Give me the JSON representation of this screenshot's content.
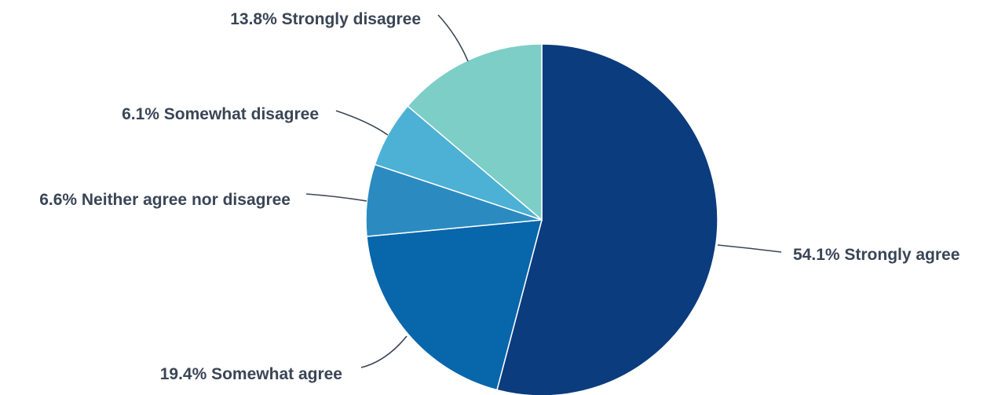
{
  "chart_data": {
    "type": "pie",
    "start_angle_deg": 0,
    "direction": "clockwise",
    "slices": [
      {
        "label": "54.1% Strongly agree",
        "category": "Strongly agree",
        "value": 54.1,
        "color": "#0b3c7d"
      },
      {
        "label": "19.4% Somewhat agree",
        "category": "Somewhat agree",
        "value": 19.4,
        "color": "#0866ab"
      },
      {
        "label": "6.6% Neither agree nor disagree",
        "category": "Neither agree nor disagree",
        "value": 6.6,
        "color": "#2b8bc0"
      },
      {
        "label": "6.1% Somewhat disagree",
        "category": "Somewhat disagree",
        "value": 6.1,
        "color": "#4cb1d4"
      },
      {
        "label": "13.8% Strongly disagree",
        "category": "Strongly disagree",
        "value": 13.8,
        "color": "#7dcec6"
      }
    ]
  }
}
